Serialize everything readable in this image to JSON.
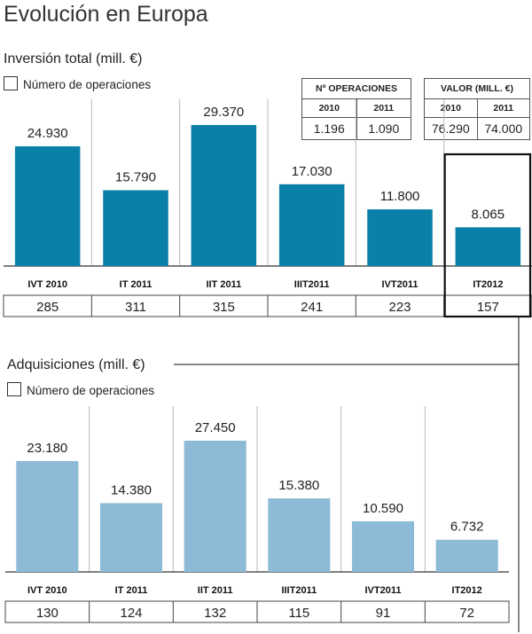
{
  "title": "Evolución en Europa",
  "charts": [
    {
      "subtitle": "Inversión total (mill. €)",
      "legend_label": "Número de operaciones",
      "bar_color": "#0a7fa8"
    },
    {
      "subtitle": "Adquisiciones (mill. €)",
      "legend_label": "Número de operaciones",
      "bar_color": "#8dbad6"
    }
  ],
  "ops_table": {
    "header": "Nº OPERACIONES",
    "years": [
      "2010",
      "2011"
    ],
    "values": [
      "1.196",
      "1.090"
    ]
  },
  "value_table": {
    "header": "VALOR (MILL. €)",
    "years": [
      "2010",
      "2011"
    ],
    "values": [
      "76.290",
      "74.000"
    ]
  },
  "chart_data": [
    {
      "type": "bar",
      "title": "Inversión total (mill. €)",
      "categories": [
        "IVT 2010",
        "IT 2011",
        "IIT 2011",
        "IIIT2011",
        "IVT2011",
        "IT2012"
      ],
      "values": [
        24930,
        15790,
        29370,
        17030,
        11800,
        8065
      ],
      "value_labels": [
        "24.930",
        "15.790",
        "29.370",
        "17.030",
        "11.800",
        "8.065"
      ],
      "operations": [
        "285",
        "311",
        "315",
        "241",
        "223",
        "157"
      ],
      "ylim": [
        0,
        29370
      ],
      "highlight": "IT2012"
    },
    {
      "type": "bar",
      "title": "Adquisiciones (mill. €)",
      "categories": [
        "IVT 2010",
        "IT 2011",
        "IIT 2011",
        "IIIT2011",
        "IVT2011",
        "IT2012"
      ],
      "values": [
        23180,
        14380,
        27450,
        15380,
        10590,
        6732
      ],
      "value_labels": [
        "23.180",
        "14.380",
        "27.450",
        "15.380",
        "10.590",
        "6.732"
      ],
      "operations": [
        "130",
        "124",
        "132",
        "115",
        "91",
        "72"
      ],
      "ylim": [
        0,
        27450
      ]
    }
  ]
}
